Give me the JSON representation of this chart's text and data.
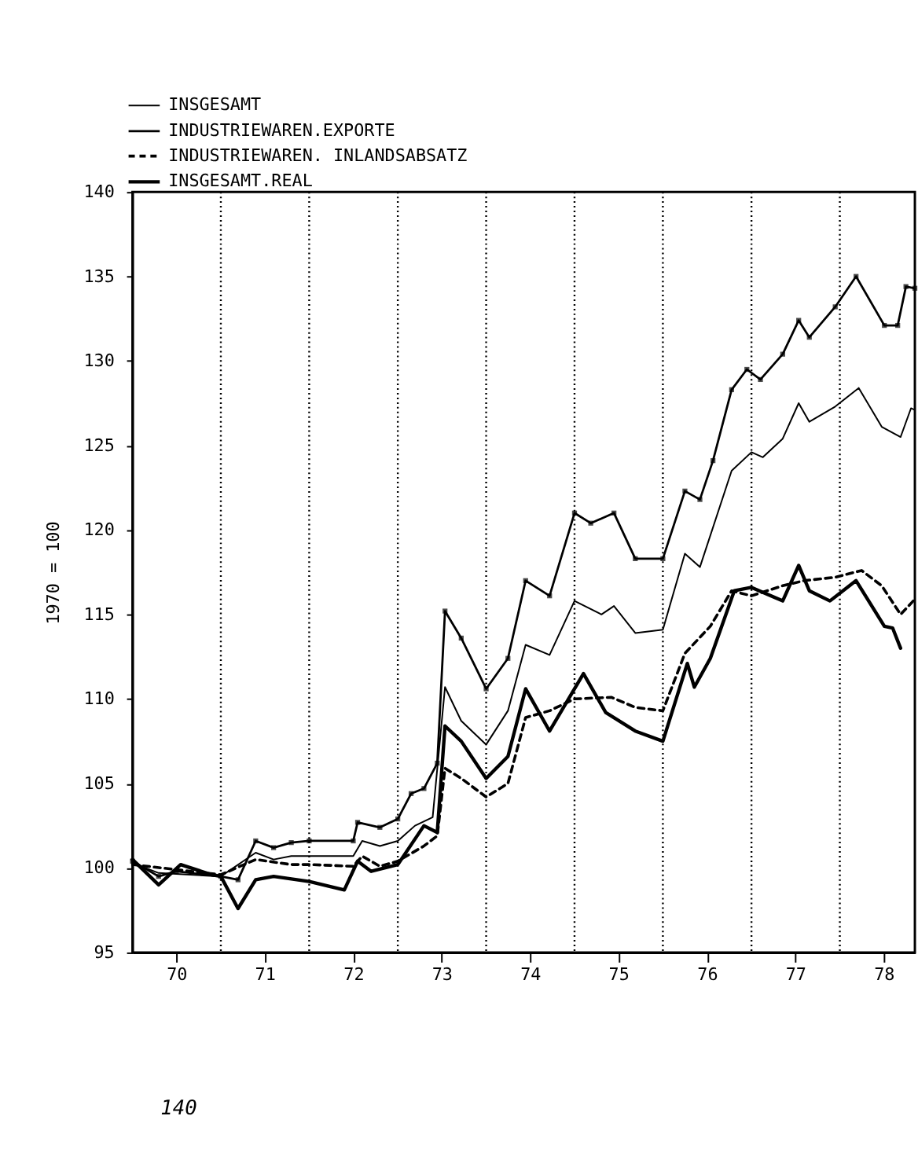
{
  "chart_data": {
    "type": "line",
    "ylabel": "1970 = 100",
    "xlim": [
      "1970-01-01",
      "1978-11-07"
    ],
    "ylim": [
      95,
      140
    ],
    "yticks": [
      95,
      100,
      105,
      110,
      115,
      120,
      125,
      130,
      135,
      140
    ],
    "xticks": [
      {
        "value": "1970-07-01",
        "label": "70"
      },
      {
        "value": "1971-07-01",
        "label": "71"
      },
      {
        "value": "1972-07-01",
        "label": "72"
      },
      {
        "value": "1973-07-01",
        "label": "73"
      },
      {
        "value": "1974-07-01",
        "label": "74"
      },
      {
        "value": "1975-07-01",
        "label": "75"
      },
      {
        "value": "1976-07-01",
        "label": "76"
      },
      {
        "value": "1977-07-01",
        "label": "77"
      },
      {
        "value": "1978-07-01",
        "label": "78"
      }
    ],
    "legend": "top left",
    "grid": false,
    "ref_lines": [
      {
        "axis": "x",
        "value": "1971-01-01",
        "line_style": "dotted"
      },
      {
        "axis": "x",
        "value": "1972-01-01",
        "line_style": "dotted"
      },
      {
        "axis": "x",
        "value": "1973-01-01",
        "line_style": "dotted"
      },
      {
        "axis": "x",
        "value": "1974-01-01",
        "line_style": "dotted"
      },
      {
        "axis": "x",
        "value": "1975-01-01",
        "line_style": "dotted"
      },
      {
        "axis": "x",
        "value": "1976-01-01",
        "line_style": "dotted"
      },
      {
        "axis": "x",
        "value": "1977-01-01",
        "line_style": "dotted"
      },
      {
        "axis": "x",
        "value": "1978-01-01",
        "line_style": "dotted"
      }
    ],
    "annotations": [
      "140"
    ],
    "series": [
      {
        "name": "INSGESAMT",
        "color": "#000000",
        "line_style": "solid",
        "x": [
          "1970-01-01",
          "1970-04-19",
          "1971-01-01",
          "1971-05-25",
          "1971-08-07",
          "1971-10-19",
          "1972-01-01",
          "1972-07-01",
          "1972-08-07",
          "1972-10-19",
          "1973-01-01",
          "1973-03-13",
          "1973-05-25",
          "1973-07-15",
          "1973-09-20",
          "1974-01-01",
          "1974-04-01",
          "1974-06-13",
          "1974-09-20",
          "1975-01-01",
          "1975-04-22",
          "1975-06-13",
          "1975-09-09",
          "1976-01-01",
          "1976-04-01",
          "1976-06-02",
          "1976-10-11",
          "1977-01-01",
          "1977-02-17",
          "1977-05-10",
          "1977-07-15",
          "1977-08-28",
          "1977-12-13",
          "1978-03-20",
          "1978-06-23",
          "1978-09-09",
          "1978-10-22",
          "1978-11-07"
        ],
        "values": [
          100.3,
          99.7,
          99.5,
          100.9,
          100.5,
          100.7,
          100.7,
          100.7,
          101.6,
          101.3,
          101.6,
          102.5,
          103,
          110.7,
          108.7,
          107.3,
          109.3,
          113.2,
          112.6,
          115.8,
          115,
          115.5,
          113.9,
          114.1,
          118.6,
          117.8,
          123.5,
          124.6,
          124.3,
          125.4,
          127.5,
          126.4,
          127.3,
          128.4,
          126.1,
          125.5,
          127.2,
          127.1
        ]
      },
      {
        "name": "INDUSTRIEWAREN.EXPORTE",
        "color": "#000000",
        "line_style": "solid",
        "marker": "square",
        "x": [
          "1970-01-01",
          "1970-04-19",
          "1970-07-01",
          "1971-01-01",
          "1971-03-13",
          "1971-05-25",
          "1971-08-07",
          "1971-10-19",
          "1972-01-01",
          "1972-07-01",
          "1972-07-19",
          "1972-10-19",
          "1973-01-01",
          "1973-02-25",
          "1973-04-19",
          "1973-06-13",
          "1973-07-15",
          "1973-09-20",
          "1974-01-01",
          "1974-04-01",
          "1974-06-13",
          "1974-09-20",
          "1975-01-01",
          "1975-03-09",
          "1975-06-13",
          "1975-09-09",
          "1976-01-01",
          "1976-04-01",
          "1976-06-02",
          "1976-07-26",
          "1976-10-11",
          "1976-12-13",
          "1977-02-07",
          "1977-05-10",
          "1977-07-15",
          "1977-08-28",
          "1977-12-13",
          "1978-03-09",
          "1978-07-04",
          "1978-08-28",
          "1978-10-01",
          "1978-11-07"
        ],
        "values": [
          100.4,
          99.5,
          99.8,
          99.5,
          99.3,
          101.6,
          101.2,
          101.5,
          101.6,
          101.6,
          102.7,
          102.4,
          102.9,
          104.4,
          104.7,
          106.2,
          115.2,
          113.6,
          110.6,
          112.4,
          117,
          116.1,
          121,
          120.4,
          121,
          118.3,
          118.3,
          122.3,
          121.8,
          124.1,
          128.3,
          129.5,
          128.9,
          130.4,
          132.4,
          131.4,
          133.2,
          135,
          132.1,
          132.1,
          134.4,
          134.3
        ]
      },
      {
        "name": "INDUSTRIEWAREN. INLANDSABSATZ",
        "color": "#000000",
        "line_style": "dashed",
        "x": [
          "1970-01-01",
          "1971-01-01",
          "1971-05-25",
          "1971-10-19",
          "1972-01-01",
          "1972-07-01",
          "1972-08-07",
          "1972-10-19",
          "1973-01-01",
          "1973-04-19",
          "1973-06-13",
          "1973-07-15",
          "1973-09-20",
          "1974-01-01",
          "1974-04-01",
          "1974-06-13",
          "1974-09-20",
          "1975-01-01",
          "1975-06-02",
          "1975-09-09",
          "1976-01-01",
          "1976-04-01",
          "1976-07-15",
          "1976-10-11",
          "1977-01-01",
          "1977-05-10",
          "1977-08-07",
          "1977-12-13",
          "1978-04-01",
          "1978-06-23",
          "1978-09-09",
          "1978-11-07"
        ],
        "values": [
          100.2,
          99.6,
          100.5,
          100.2,
          100.2,
          100.1,
          100.7,
          100.1,
          100.4,
          101.3,
          101.9,
          105.9,
          105.3,
          104.2,
          105,
          108.9,
          109.3,
          110,
          110.1,
          109.5,
          109.3,
          112.7,
          114.3,
          116.4,
          116.1,
          116.7,
          117,
          117.2,
          117.6,
          116.7,
          115,
          115.9
        ]
      },
      {
        "name": "INSGESAMT.REAL",
        "color": "#000000",
        "line_style": "solid",
        "x": [
          "1970-01-01",
          "1970-04-19",
          "1970-07-19",
          "1970-11-25",
          "1971-01-01",
          "1971-03-13",
          "1971-05-25",
          "1971-08-07",
          "1972-01-01",
          "1972-05-25",
          "1972-07-19",
          "1972-09-13",
          "1973-01-01",
          "1973-04-19",
          "1973-06-13",
          "1973-07-15",
          "1973-09-20",
          "1974-01-01",
          "1974-04-01",
          "1974-06-13",
          "1974-09-20",
          "1975-02-07",
          "1975-05-10",
          "1975-09-09",
          "1976-01-01",
          "1976-04-11",
          "1976-05-10",
          "1976-07-15",
          "1976-10-22",
          "1977-01-01",
          "1977-05-10",
          "1977-07-15",
          "1977-08-28",
          "1977-11-21",
          "1978-03-09",
          "1978-07-04",
          "1978-08-07",
          "1978-09-09"
        ],
        "values": [
          100.5,
          99,
          100.2,
          99.6,
          99.5,
          97.6,
          99.3,
          99.5,
          99.2,
          98.7,
          100.4,
          99.8,
          100.2,
          102.5,
          102.1,
          108.4,
          107.5,
          105.3,
          106.6,
          110.6,
          108.1,
          111.5,
          109.2,
          108.1,
          107.5,
          112.1,
          110.7,
          112.4,
          116.4,
          116.6,
          115.8,
          117.9,
          116.4,
          115.8,
          117,
          114.3,
          114.2,
          113
        ]
      }
    ]
  }
}
